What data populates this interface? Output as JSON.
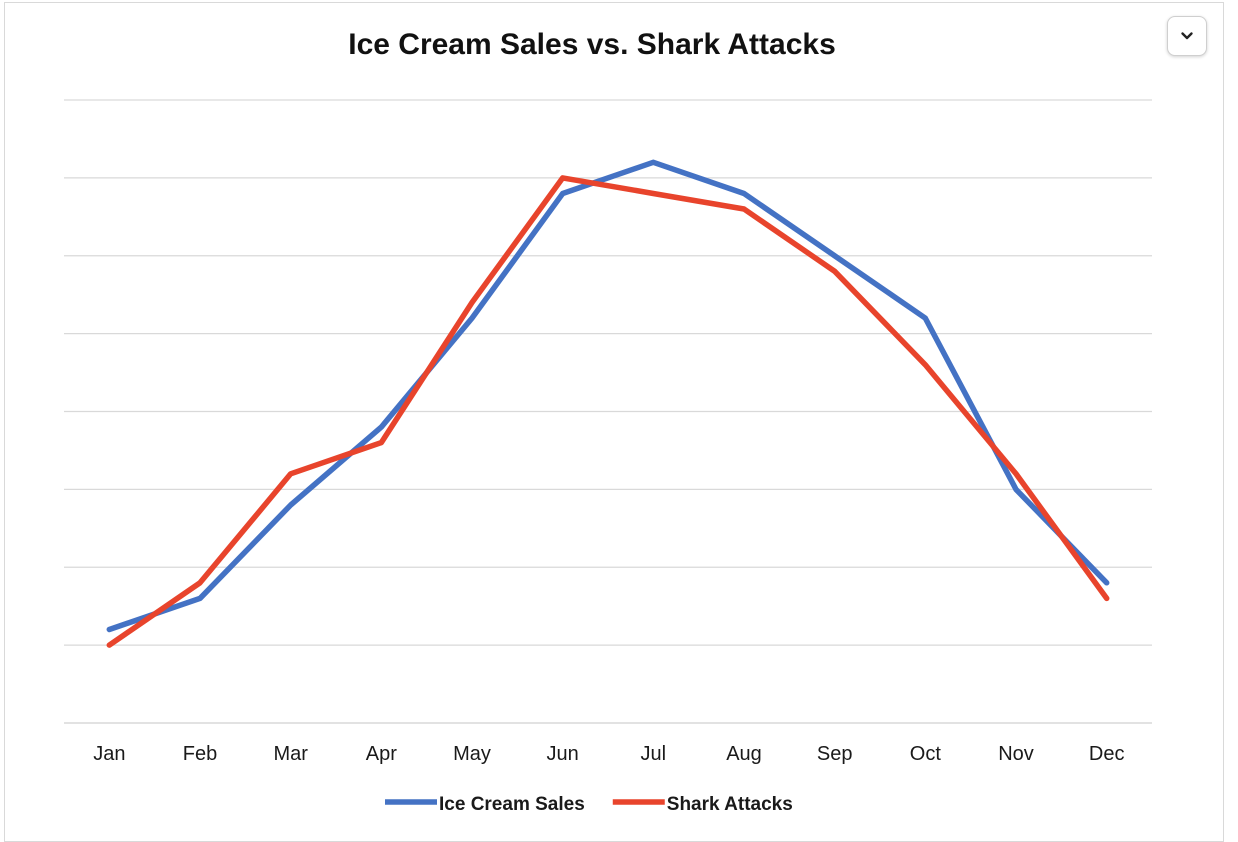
{
  "chart_data": {
    "type": "line",
    "title": "Ice Cream Sales vs. Shark Attacks",
    "xlabel": "",
    "ylabel": "",
    "categories": [
      "Jan",
      "Feb",
      "Mar",
      "Apr",
      "May",
      "Jun",
      "Jul",
      "Aug",
      "Sep",
      "Oct",
      "Nov",
      "Dec"
    ],
    "ylim": [
      0,
      8
    ],
    "gridlines": 8,
    "grid": true,
    "y_tick_labels_shown": false,
    "legend_position": "bottom",
    "series": [
      {
        "name": "Ice Cream Sales",
        "color": "#4472C4",
        "values": [
          1.2,
          1.6,
          2.8,
          3.8,
          5.2,
          6.8,
          7.2,
          6.8,
          6.0,
          5.2,
          3.0,
          1.8
        ]
      },
      {
        "name": "Shark Attacks",
        "color": "#E8442C",
        "values": [
          1.0,
          1.8,
          3.2,
          3.6,
          5.4,
          7.0,
          6.8,
          6.6,
          5.8,
          4.6,
          3.2,
          1.6
        ]
      }
    ]
  },
  "controls": {
    "menu_icon": "chevron-down-icon"
  }
}
